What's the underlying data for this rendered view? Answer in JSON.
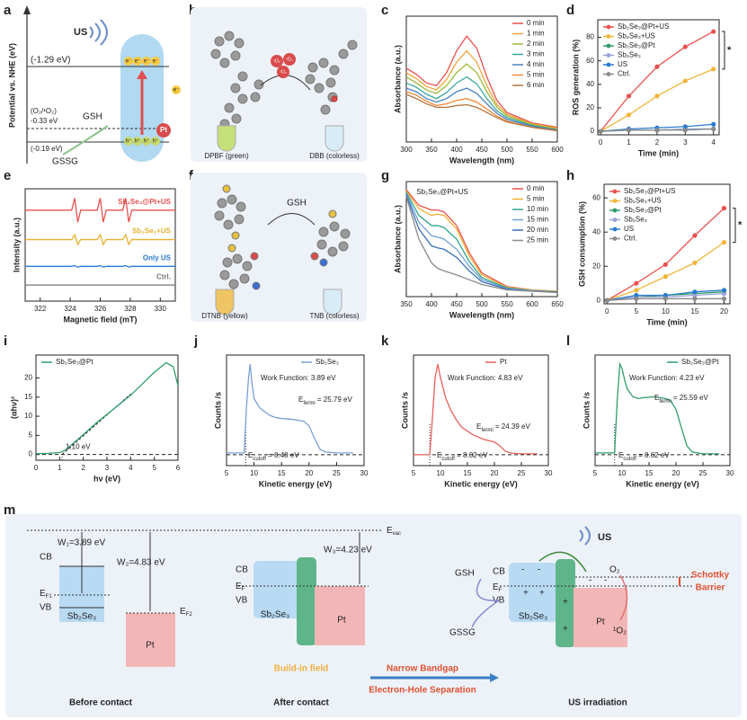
{
  "chart_data": [
    {
      "type": "line",
      "panel": "c",
      "x_label": "Wavelength (nm)",
      "y_label": "Absorbance (a.u.)",
      "x": [
        300,
        320,
        340,
        360,
        380,
        400,
        420,
        440,
        460,
        480,
        500,
        550,
        600
      ],
      "xlim": [
        300,
        600
      ],
      "xticks": [
        300,
        350,
        400,
        450,
        500,
        550,
        600
      ],
      "ylim": [
        0.3,
        1.75
      ],
      "legend": "upper right",
      "markers": false,
      "series": [
        {
          "name": "0 min",
          "color": "#e8514f",
          "values": [
            1.15,
            1.08,
            0.98,
            0.95,
            1.1,
            1.35,
            1.52,
            1.38,
            1.05,
            0.78,
            0.64,
            0.52,
            0.47
          ]
        },
        {
          "name": "1 min",
          "color": "#f0a33c",
          "values": [
            1.1,
            1.03,
            0.94,
            0.9,
            1.02,
            1.22,
            1.35,
            1.22,
            0.95,
            0.73,
            0.62,
            0.51,
            0.46
          ]
        },
        {
          "name": "2 min",
          "color": "#9bbb3a",
          "values": [
            1.05,
            0.98,
            0.9,
            0.86,
            0.95,
            1.1,
            1.2,
            1.1,
            0.88,
            0.7,
            0.6,
            0.5,
            0.45
          ]
        },
        {
          "name": "3 min",
          "color": "#3aa6a0",
          "values": [
            0.98,
            0.93,
            0.85,
            0.8,
            0.87,
            0.98,
            1.05,
            0.97,
            0.8,
            0.66,
            0.58,
            0.49,
            0.44
          ]
        },
        {
          "name": "4 min",
          "color": "#4a7fc1",
          "values": [
            0.92,
            0.88,
            0.8,
            0.76,
            0.8,
            0.88,
            0.92,
            0.86,
            0.74,
            0.63,
            0.56,
            0.48,
            0.44
          ]
        },
        {
          "name": "5 min",
          "color": "#f08a3a",
          "values": [
            0.88,
            0.84,
            0.77,
            0.72,
            0.74,
            0.78,
            0.8,
            0.76,
            0.68,
            0.6,
            0.54,
            0.47,
            0.43
          ]
        },
        {
          "name": "6 min",
          "color": "#b5733c",
          "values": [
            0.85,
            0.8,
            0.74,
            0.7,
            0.7,
            0.72,
            0.73,
            0.7,
            0.64,
            0.58,
            0.53,
            0.47,
            0.43
          ]
        }
      ]
    },
    {
      "type": "line",
      "panel": "d",
      "x_label": "Time (min)",
      "y_label": "ROS generation (%)",
      "x": [
        0,
        1,
        2,
        3,
        4
      ],
      "xlim": [
        -0.1,
        4.2
      ],
      "xticks": [
        0,
        1,
        2,
        3,
        4
      ],
      "ylim": [
        -3,
        95
      ],
      "yticks": [
        0,
        20,
        40,
        60,
        80
      ],
      "legend": "upper left",
      "markers": true,
      "significance": "*",
      "series": [
        {
          "name": "Sb₂Se₃@Pt+US",
          "color": "#e8514f",
          "values": [
            0,
            30,
            55,
            72,
            85
          ]
        },
        {
          "name": "Sb₂Se₃+US",
          "color": "#f0b53a",
          "values": [
            0,
            14,
            30,
            43,
            53
          ]
        },
        {
          "name": "Sb₂Se₃@Pt",
          "color": "#2e9e6a",
          "values": [
            0,
            1,
            1,
            2,
            2
          ]
        },
        {
          "name": "Sb₂Se₃",
          "color": "#9aa3d8",
          "values": [
            0,
            1,
            1,
            2,
            2
          ]
        },
        {
          "name": "US",
          "color": "#2b7bd0",
          "values": [
            0,
            2,
            3,
            4,
            6
          ]
        },
        {
          "name": "Ctrl.",
          "color": "#8a8a8a",
          "values": [
            0,
            1,
            1,
            1,
            2
          ]
        }
      ]
    },
    {
      "type": "line",
      "panel": "e",
      "x_label": "Magnetic field (mT)",
      "y_label": "Intensity (a.u.)",
      "x": [
        321,
        324.1,
        324.3,
        324.5,
        324.7,
        325.8,
        326.0,
        326.2,
        326.4,
        327.5,
        327.7,
        327.9,
        328.1,
        331
      ],
      "xlim": [
        321,
        331
      ],
      "xticks": [
        322,
        324,
        326,
        328,
        330
      ],
      "ylim": [
        0,
        4.2
      ],
      "legend": "inline",
      "markers": false,
      "series": [
        {
          "name": "Sb₂Se₃@Pt+US",
          "color": "#e8514f",
          "values": [
            3.4,
            3.4,
            3.85,
            2.95,
            3.4,
            3.4,
            3.85,
            2.95,
            3.4,
            3.4,
            3.85,
            2.95,
            3.4,
            3.4
          ]
        },
        {
          "name": "Sb₂Se₃+US",
          "color": "#e8b030",
          "values": [
            2.3,
            2.3,
            2.48,
            2.12,
            2.3,
            2.3,
            2.48,
            2.12,
            2.3,
            2.3,
            2.48,
            2.12,
            2.3,
            2.3
          ]
        },
        {
          "name": "Only US",
          "color": "#2b7bd0",
          "values": [
            1.3,
            1.3,
            1.33,
            1.27,
            1.3,
            1.3,
            1.33,
            1.27,
            1.3,
            1.3,
            1.33,
            1.27,
            1.3,
            1.3
          ]
        },
        {
          "name": "Ctrl.",
          "color": "#777777",
          "values": [
            0.6,
            0.6,
            0.6,
            0.6,
            0.6,
            0.6,
            0.6,
            0.6,
            0.6,
            0.6,
            0.6,
            0.6,
            0.6,
            0.6
          ]
        }
      ]
    },
    {
      "type": "line",
      "panel": "g",
      "x_label": "Wavelength (nm)",
      "y_label": "Absorbance (a.u.)",
      "x": [
        350,
        375,
        400,
        412,
        425,
        450,
        475,
        500,
        550,
        600,
        650
      ],
      "xlim": [
        350,
        650
      ],
      "xticks": [
        350,
        400,
        450,
        500,
        550,
        600,
        650
      ],
      "ylim": [
        0.2,
        1.9
      ],
      "legend": "upper right",
      "markers": false,
      "annotations": [
        "Sb₂Se₃@Pt+US"
      ],
      "series": [
        {
          "name": "0 min",
          "color": "#e8514f",
          "values": [
            1.78,
            1.55,
            1.48,
            1.48,
            1.45,
            1.25,
            0.85,
            0.55,
            0.35,
            0.3,
            0.28
          ]
        },
        {
          "name": "5 min",
          "color": "#f0b030",
          "values": [
            1.76,
            1.5,
            1.4,
            1.42,
            1.4,
            1.2,
            0.8,
            0.52,
            0.34,
            0.3,
            0.28
          ]
        },
        {
          "name": "10 min",
          "color": "#2ea58c",
          "values": [
            1.74,
            1.4,
            1.25,
            1.25,
            1.22,
            1.05,
            0.72,
            0.48,
            0.33,
            0.29,
            0.27
          ]
        },
        {
          "name": "15 min",
          "color": "#6f9fd8",
          "values": [
            1.72,
            1.3,
            1.1,
            1.08,
            1.05,
            0.9,
            0.65,
            0.45,
            0.32,
            0.29,
            0.27
          ]
        },
        {
          "name": "20 min",
          "color": "#3b6fb6",
          "values": [
            1.7,
            1.2,
            0.95,
            0.92,
            0.9,
            0.78,
            0.58,
            0.42,
            0.31,
            0.28,
            0.27
          ]
        },
        {
          "name": "25 min",
          "color": "#8a8a8a",
          "values": [
            1.68,
            1.05,
            0.7,
            0.62,
            0.58,
            0.52,
            0.45,
            0.38,
            0.3,
            0.28,
            0.26
          ]
        }
      ]
    },
    {
      "type": "line",
      "panel": "h",
      "x_label": "Time (min)",
      "y_label": "GSH consumption (%)",
      "x": [
        0,
        5,
        10,
        15,
        20
      ],
      "xlim": [
        -0.5,
        21
      ],
      "xticks": [
        0,
        5,
        10,
        15,
        20
      ],
      "ylim": [
        -2,
        68
      ],
      "yticks": [
        0,
        20,
        40,
        60
      ],
      "legend": "upper left",
      "markers": true,
      "significance": "*",
      "series": [
        {
          "name": "Sb₂Se₃@Pt+US",
          "color": "#e8514f",
          "values": [
            0,
            10,
            21,
            38,
            54
          ]
        },
        {
          "name": "Sb₂Se₃+US",
          "color": "#f0b53a",
          "values": [
            0,
            6,
            14,
            22,
            34
          ]
        },
        {
          "name": "Sb₂Se₃@Pt",
          "color": "#2e9e6a",
          "values": [
            0,
            2,
            3,
            4,
            5
          ]
        },
        {
          "name": "Sb₂Se₃",
          "color": "#9aa3d8",
          "values": [
            0,
            2,
            2,
            3,
            4
          ]
        },
        {
          "name": "US",
          "color": "#2b7bd0",
          "values": [
            0,
            3,
            3,
            5,
            6
          ]
        },
        {
          "name": "Ctrl.",
          "color": "#8a8a8a",
          "values": [
            0,
            1,
            1,
            1,
            1
          ]
        }
      ]
    },
    {
      "type": "line",
      "panel": "i",
      "x_label": "hν (eV)",
      "y_label": "(αhν)²",
      "x": [
        0,
        0.5,
        1,
        1.2,
        1.5,
        2,
        2.5,
        3,
        3.5,
        4,
        4.5,
        5,
        5.5,
        5.8,
        6
      ],
      "xlim": [
        0,
        6
      ],
      "xticks": [
        0,
        1,
        2,
        3,
        4,
        5,
        6
      ],
      "ylim": [
        -1.5,
        26
      ],
      "yticks": [
        0,
        5,
        10,
        15,
        20
      ],
      "legend": "upper left",
      "markers": false,
      "bandgap": 1.1,
      "annotations": [
        "1.10 eV"
      ],
      "fit_line": {
        "x": [
          1.1,
          4.0
        ],
        "y": [
          0,
          15.8
        ]
      },
      "series": [
        {
          "name": "Sb₂Se₃@Pt",
          "color": "#2e9e6a",
          "values": [
            0.2,
            0.3,
            0.5,
            1,
            2.5,
            5.2,
            8,
            10.5,
            13,
            15.5,
            18.5,
            21.5,
            24,
            23,
            18
          ]
        }
      ]
    },
    {
      "type": "line",
      "panel": "j",
      "x_label": "Kinetic energy (eV)",
      "y_label": "Counts /s",
      "x": [
        5,
        7,
        8.2,
        8.6,
        9,
        9.3,
        9.6,
        10,
        11,
        12,
        13,
        14,
        15,
        17,
        19,
        20,
        21,
        22,
        23,
        25,
        28
      ],
      "xlim": [
        5,
        30
      ],
      "xticks": [
        5,
        10,
        15,
        20,
        25,
        30
      ],
      "ylim": [
        -0.12,
        1.1
      ],
      "legend": "upper right",
      "markers": false,
      "cutoff": 8.48,
      "annotations": [
        "Work Function: 3.89 eV",
        {
          "base": "E",
          "sub": "fermi",
          "text": " = 25.79 eV"
        },
        {
          "base": "E",
          "sub": "cutoff",
          "text": " = 8.48 eV"
        }
      ],
      "series": [
        {
          "name": "Sb₂Se₃",
          "color": "#7b9fd6",
          "values": [
            0.02,
            0.02,
            0.02,
            0.5,
            0.85,
            1.0,
            0.8,
            0.62,
            0.52,
            0.47,
            0.43,
            0.41,
            0.4,
            0.39,
            0.37,
            0.32,
            0.18,
            0.06,
            0.03,
            0.02,
            0.02
          ]
        }
      ]
    },
    {
      "type": "line",
      "panel": "k",
      "x_label": "Kinetic energy (eV)",
      "y_label": "Counts /s",
      "x": [
        5,
        7,
        8.02,
        8.5,
        9,
        9.5,
        10,
        11,
        12,
        13,
        14,
        16,
        18,
        20,
        21,
        22,
        23,
        25,
        28
      ],
      "xlim": [
        5,
        30
      ],
      "xticks": [
        5,
        10,
        15,
        20,
        25,
        30
      ],
      "ylim": [
        -0.12,
        1.1
      ],
      "legend": "upper right",
      "markers": false,
      "cutoff": 8.02,
      "annotations": [
        "Work Function: 4.83 eV",
        {
          "base": "E",
          "sub": "fermi",
          "text": " = 24.39 eV"
        },
        {
          "base": "E",
          "sub": "cutoff",
          "text": " = 8.02 eV"
        }
      ],
      "series": [
        {
          "name": "Pt",
          "color": "#e8605a",
          "values": [
            0,
            0,
            0,
            0.4,
            0.85,
            1.0,
            0.85,
            0.62,
            0.48,
            0.38,
            0.3,
            0.22,
            0.17,
            0.14,
            0.1,
            0.04,
            0.02,
            0.01,
            0.01
          ]
        }
      ]
    },
    {
      "type": "line",
      "panel": "l",
      "x_label": "Kinetic energy (eV)",
      "y_label": "Counts /s",
      "x": [
        5,
        7,
        8.62,
        9.1,
        9.6,
        10,
        10.5,
        11,
        12,
        13,
        14,
        16,
        18,
        19,
        20,
        21,
        22,
        23,
        25,
        28
      ],
      "xlim": [
        5,
        30
      ],
      "xticks": [
        5,
        10,
        15,
        20,
        25,
        30
      ],
      "ylim": [
        -0.12,
        1.1
      ],
      "legend": "upper right",
      "markers": false,
      "cutoff": 8.62,
      "annotations": [
        "Work Function: 4.23 eV",
        {
          "base": "E",
          "sub": "fermi",
          "text": " = 25.59 eV"
        },
        {
          "base": "E",
          "sub": "cutoff",
          "text": " = 8.62 eV"
        }
      ],
      "series": [
        {
          "name": "Sb₂Se₃@Pt",
          "color": "#2e9e6a",
          "values": [
            0.02,
            0.02,
            0.02,
            0.6,
            1.0,
            0.95,
            0.82,
            0.72,
            0.64,
            0.62,
            0.63,
            0.64,
            0.62,
            0.6,
            0.5,
            0.3,
            0.1,
            0.03,
            0.01,
            0.01
          ]
        }
      ]
    }
  ],
  "diagrams": {
    "a": {
      "panel": "a",
      "axis_label": "Potential vs. NHE (eV)",
      "us": "US",
      "cb_level": "(-1.29 eV)",
      "couple": "(O₂/¹O₂)",
      "couple_level": "-0.33 eV",
      "vb_level": "(-0.19 eV)",
      "gsh": "GSH",
      "gssg": "GSSG",
      "pt": "Pt",
      "electron": "e⁻",
      "hole": "h⁺"
    },
    "b": {
      "panel": "b",
      "singlet_oxygen": "¹O₂",
      "reactant": "DPBF (green)",
      "product": "DBB (colorless)"
    },
    "f": {
      "panel": "f",
      "reagent": "GSH",
      "reactant": "DTNB (yellow)",
      "product": "TNB (colorless)"
    },
    "m": {
      "panel": "m",
      "e": "E",
      "vac": "vac",
      "f": "F",
      "f1": "F1",
      "f2": "F2",
      "w1": "W₁=3.89 eV",
      "w2": "W₂=4.83 eV",
      "w3": "W₃=4.23 eV",
      "cb": "CB",
      "vb": "VB",
      "sb2se3": "Sb₂Se₃",
      "pt": "Pt",
      "before": "Before contact",
      "after": "After contact",
      "field": "Build-in field",
      "narrow": "Narrow Bandgap",
      "separation": "Electron-Hole Separation",
      "us": "US",
      "o2": "O₂",
      "singlet": "¹O₂",
      "schottky1": "Schottky",
      "schottky2": "Barrier",
      "gsh": "GSH",
      "gssg": "GSSG",
      "irradiation": "US irradiation",
      "minus": "-",
      "plus": "+"
    }
  }
}
